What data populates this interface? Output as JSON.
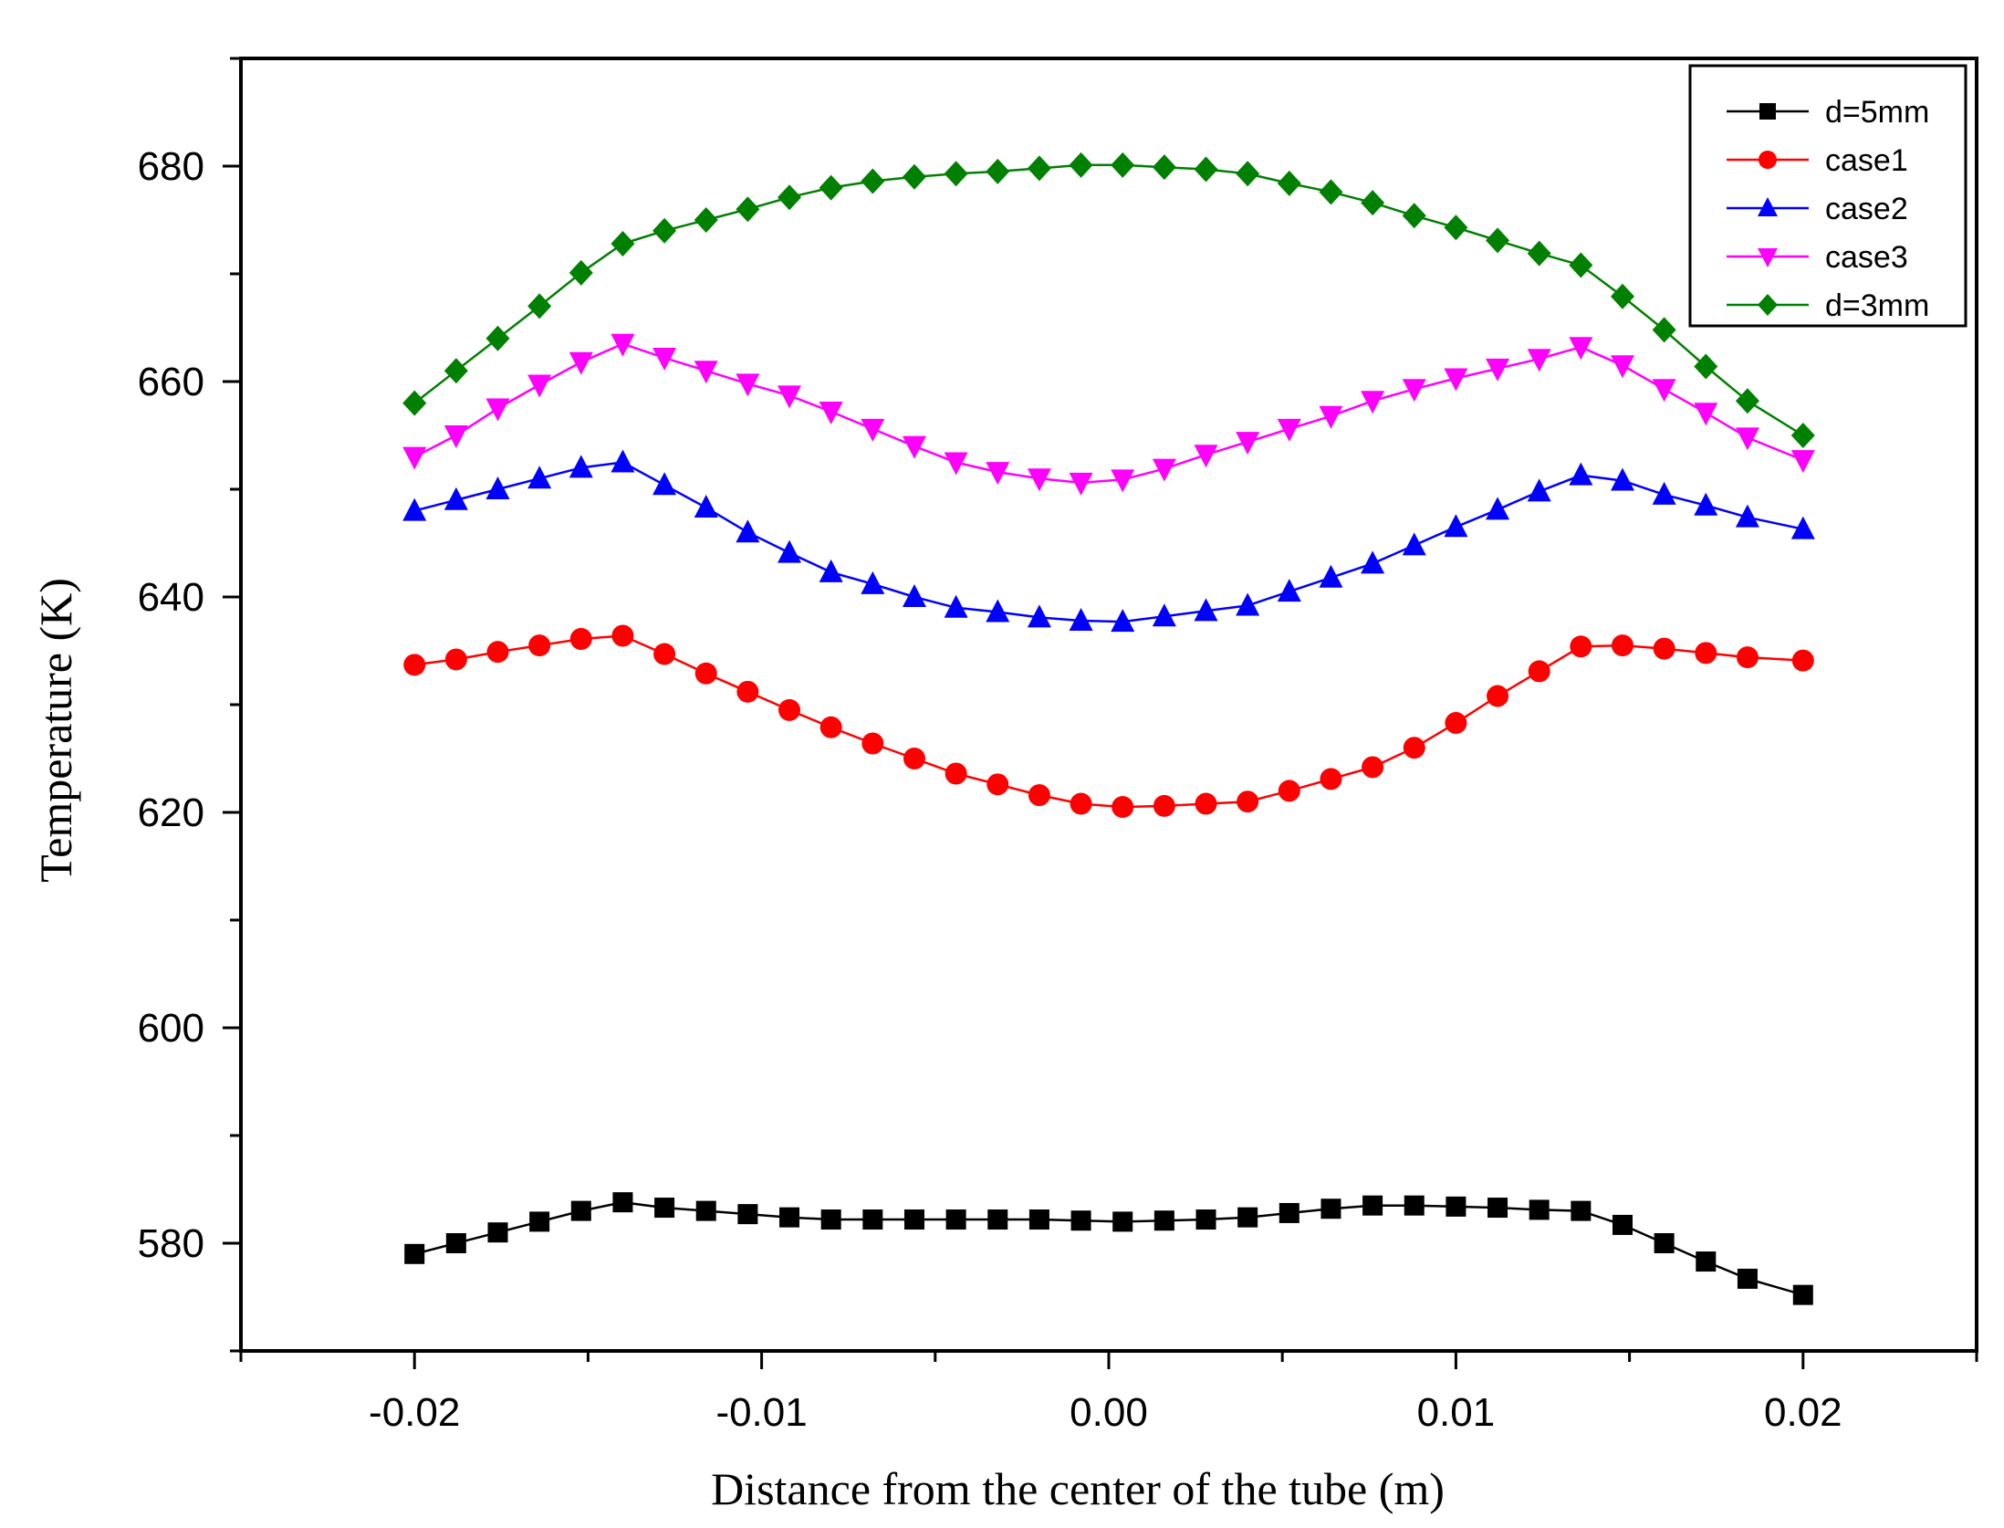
{
  "chart_data": {
    "type": "line",
    "title": "",
    "xlabel": "Distance from the center of the tube (m)",
    "ylabel": "Temperature (K)",
    "xlim": [
      -0.025,
      0.025
    ],
    "ylim": [
      570,
      690
    ],
    "x_ticks": [
      -0.02,
      -0.01,
      0.0,
      0.01,
      0.02
    ],
    "x_tick_labels": [
      "-0.02",
      "-0.01",
      "0.00",
      "0.01",
      "0.02"
    ],
    "y_ticks": [
      580,
      600,
      620,
      640,
      660,
      680
    ],
    "y_tick_labels": [
      "580",
      "600",
      "620",
      "640",
      "660",
      "680"
    ],
    "grid": false,
    "legend_position": "top-right",
    "x": [
      -0.02,
      -0.0188,
      -0.0176,
      -0.0164,
      -0.0152,
      -0.014,
      -0.0128,
      -0.0116,
      -0.0104,
      -0.0092,
      -0.008,
      -0.0068,
      -0.0056,
      -0.0044,
      -0.0032,
      -0.002,
      -0.0008,
      0.0004,
      0.0016,
      0.0028,
      0.004,
      0.0052,
      0.0064,
      0.0076,
      0.0088,
      0.01,
      0.0112,
      0.0124,
      0.0136,
      0.0148,
      0.016,
      0.0172,
      0.0184,
      0.02
    ],
    "series": [
      {
        "name": "d=5mm",
        "color": "#000000",
        "marker": "square",
        "values": [
          579.0,
          580.0,
          581.0,
          582.0,
          583.0,
          583.8,
          583.3,
          583.0,
          582.7,
          582.4,
          582.2,
          582.2,
          582.2,
          582.2,
          582.2,
          582.2,
          582.1,
          582.0,
          582.1,
          582.2,
          582.4,
          582.8,
          583.2,
          583.5,
          583.5,
          583.4,
          583.3,
          583.1,
          583.0,
          581.7,
          580.0,
          578.3,
          576.7,
          575.2
        ]
      },
      {
        "name": "case1",
        "color": "#ff0000",
        "marker": "circle",
        "values": [
          633.7,
          634.2,
          634.9,
          635.5,
          636.1,
          636.4,
          634.7,
          632.9,
          631.2,
          629.5,
          627.9,
          626.4,
          625.0,
          623.6,
          622.6,
          621.6,
          620.8,
          620.5,
          620.6,
          620.8,
          621.0,
          622.0,
          623.1,
          624.2,
          626.0,
          628.3,
          630.8,
          633.1,
          635.4,
          635.5,
          635.2,
          634.8,
          634.4,
          634.1
        ]
      },
      {
        "name": "case2",
        "color": "#0000ff",
        "marker": "triangle-up",
        "values": [
          648.0,
          649.0,
          650.0,
          651.0,
          652.0,
          652.5,
          650.4,
          648.3,
          646.0,
          644.1,
          642.3,
          641.2,
          640.0,
          639.0,
          638.6,
          638.1,
          637.8,
          637.7,
          638.2,
          638.7,
          639.2,
          640.5,
          641.8,
          643.1,
          644.8,
          646.5,
          648.1,
          649.8,
          651.3,
          650.8,
          649.5,
          648.5,
          647.4,
          646.3
        ]
      },
      {
        "name": "case3",
        "color": "#ff00ff",
        "marker": "triangle-down",
        "values": [
          653.0,
          655.0,
          657.5,
          659.7,
          661.8,
          663.5,
          662.2,
          661.0,
          659.8,
          658.7,
          657.2,
          655.6,
          654.0,
          652.5,
          651.6,
          651.0,
          650.6,
          650.9,
          651.9,
          653.2,
          654.4,
          655.6,
          656.8,
          658.2,
          659.3,
          660.3,
          661.2,
          662.1,
          663.2,
          661.5,
          659.3,
          657.1,
          654.8,
          652.7
        ]
      },
      {
        "name": "d=3mm",
        "color": "#008000",
        "marker": "diamond",
        "values": [
          658.0,
          661.0,
          664.0,
          667.0,
          670.1,
          672.8,
          674.0,
          675.0,
          676.0,
          677.1,
          678.0,
          678.6,
          679.0,
          679.3,
          679.5,
          679.8,
          680.1,
          680.1,
          679.9,
          679.7,
          679.3,
          678.4,
          677.6,
          676.6,
          675.4,
          674.3,
          673.1,
          671.9,
          670.8,
          667.9,
          664.8,
          661.4,
          658.2,
          655.0
        ]
      }
    ]
  }
}
